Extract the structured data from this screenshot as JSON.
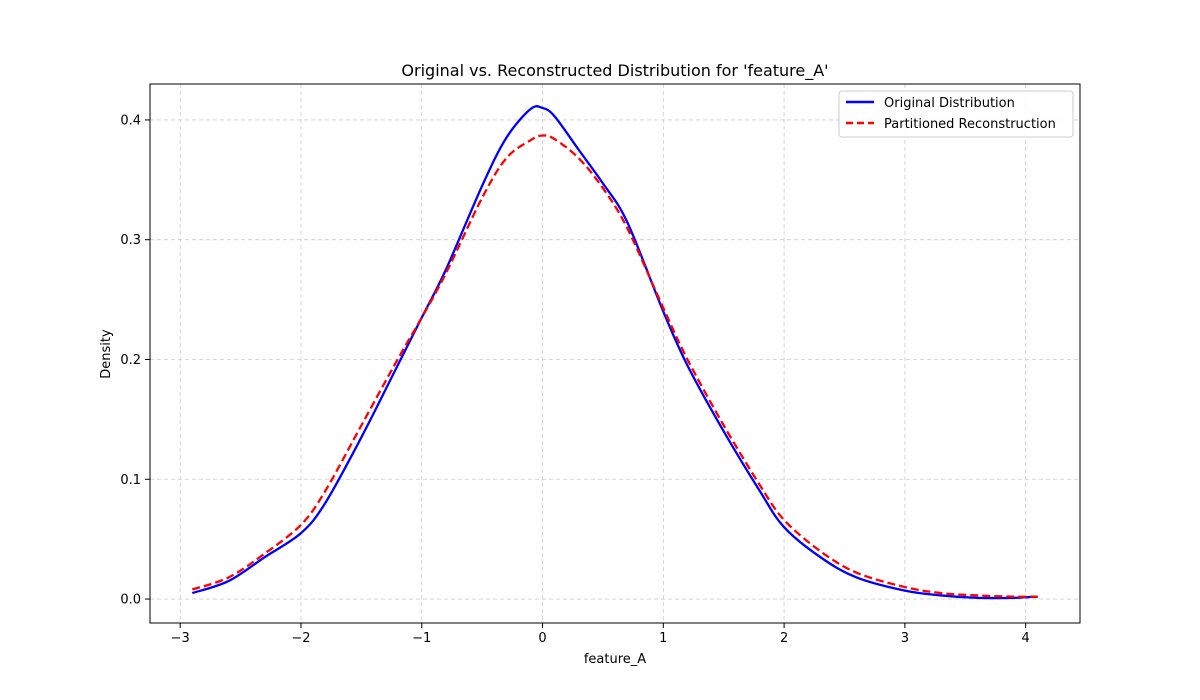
{
  "chart_data": {
    "type": "line",
    "title": "Original vs. Reconstructed Distribution for 'feature_A'",
    "xlabel": "feature_A",
    "ylabel": "Density",
    "xlim": [
      -3.25,
      4.45
    ],
    "ylim": [
      -0.02,
      0.43
    ],
    "xticks": [
      -3,
      -2,
      -1,
      0,
      1,
      2,
      3,
      4
    ],
    "xtick_labels": [
      "−3",
      "−2",
      "−1",
      "0",
      "1",
      "2",
      "3",
      "4"
    ],
    "yticks": [
      0.0,
      0.1,
      0.2,
      0.3,
      0.4
    ],
    "ytick_labels": [
      "0.0",
      "0.1",
      "0.2",
      "0.3",
      "0.4"
    ],
    "grid": true,
    "legend_position": "top-right",
    "series": [
      {
        "name": "Original Distribution",
        "color": "#0000ff",
        "style": "solid",
        "x": [
          -2.9,
          -2.6,
          -2.3,
          -2.0,
          -1.8,
          -1.5,
          -1.2,
          -1.0,
          -0.8,
          -0.5,
          -0.3,
          -0.1,
          0.0,
          0.1,
          0.3,
          0.5,
          0.7,
          1.0,
          1.2,
          1.5,
          1.8,
          2.0,
          2.3,
          2.6,
          3.0,
          3.3,
          3.6,
          3.9,
          4.1
        ],
        "y": [
          0.005,
          0.015,
          0.035,
          0.055,
          0.08,
          0.135,
          0.195,
          0.235,
          0.275,
          0.345,
          0.385,
          0.409,
          0.41,
          0.403,
          0.375,
          0.347,
          0.315,
          0.24,
          0.195,
          0.14,
          0.09,
          0.06,
          0.035,
          0.018,
          0.007,
          0.003,
          0.001,
          0.001,
          0.002
        ]
      },
      {
        "name": "Partitioned Reconstruction",
        "color": "#ff0000",
        "style": "dashed",
        "x": [
          -2.9,
          -2.6,
          -2.3,
          -2.0,
          -1.8,
          -1.5,
          -1.2,
          -1.0,
          -0.8,
          -0.5,
          -0.3,
          -0.1,
          0.0,
          0.1,
          0.3,
          0.5,
          0.7,
          1.0,
          1.2,
          1.5,
          1.8,
          2.0,
          2.3,
          2.6,
          3.0,
          3.3,
          3.6,
          3.9,
          4.1
        ],
        "y": [
          0.008,
          0.018,
          0.038,
          0.062,
          0.09,
          0.145,
          0.2,
          0.235,
          0.272,
          0.335,
          0.368,
          0.383,
          0.387,
          0.384,
          0.368,
          0.343,
          0.31,
          0.243,
          0.2,
          0.145,
          0.095,
          0.066,
          0.04,
          0.022,
          0.01,
          0.005,
          0.003,
          0.002,
          0.002
        ]
      }
    ]
  }
}
